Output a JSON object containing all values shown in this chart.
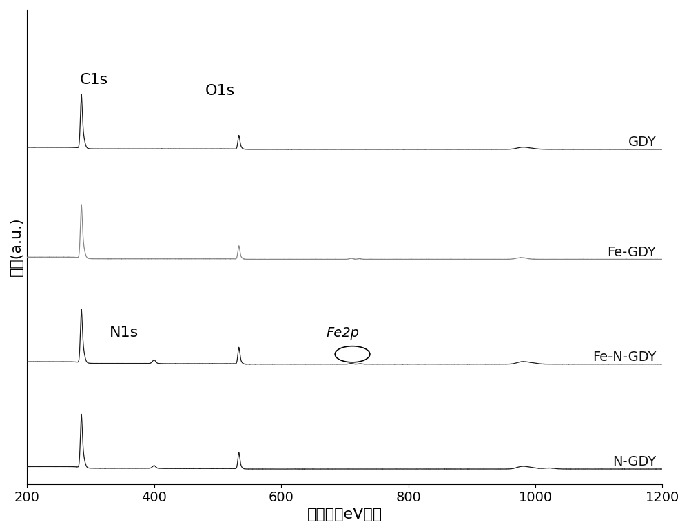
{
  "xlabel": "结合能（eV））",
  "ylabel": "强度(a.u.)",
  "xlim": [
    200,
    1200
  ],
  "ylim": [
    -0.15,
    4.6
  ],
  "xticks": [
    200,
    400,
    600,
    800,
    1000,
    1200
  ],
  "series_labels": [
    "GDY",
    "Fe-GDY",
    "Fe-N-GDY",
    "N-GDY"
  ],
  "series_colors": [
    "#1a1a1a",
    "#888888",
    "#1a1a1a",
    "#1a1a1a"
  ],
  "offsets": [
    3.2,
    2.1,
    1.05,
    0.0
  ],
  "scale": 0.55,
  "background_color": "#ffffff",
  "axis_fontsize": 16,
  "tick_fontsize": 14,
  "label_fontsize": 14,
  "annot_fontsize": 16
}
